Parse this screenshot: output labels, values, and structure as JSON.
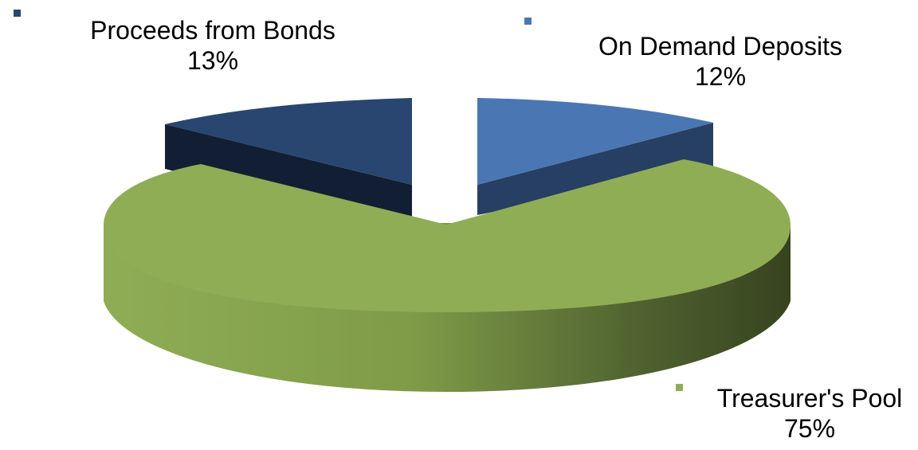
{
  "chart_data": {
    "type": "pie",
    "style": "3d-exploded",
    "slices": [
      {
        "label": "Treasurer's Pool",
        "percent_label": "75%",
        "value": 75,
        "color": "#8FAD55",
        "dark": "#3E4A22",
        "side": "#7A9446"
      },
      {
        "label": "On Demand Deposits",
        "percent_label": "12%",
        "value": 12,
        "color": "#4A77B3",
        "dark": "#263F63",
        "side": "#2A4468"
      },
      {
        "label": "Proceeds from Bonds",
        "percent_label": "13%",
        "value": 13,
        "color": "#284670",
        "dark": "#121E33",
        "side": "#16243B"
      }
    ],
    "legend_markers": true,
    "title": "",
    "legend": "none"
  }
}
